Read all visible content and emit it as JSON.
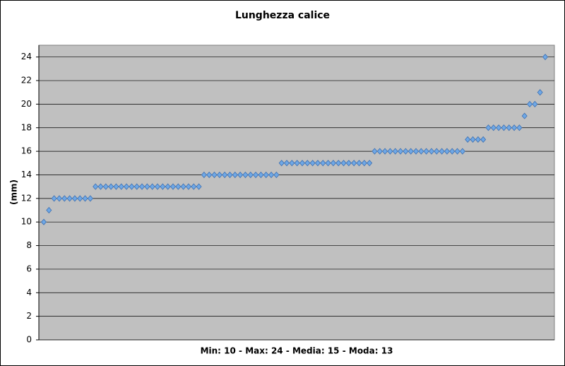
{
  "chart_data": {
    "type": "scatter",
    "title": "Lunghezza calice",
    "x_label": "Min: 10 - Max: 24 - Media: 15 - Moda: 13",
    "y_label": "(mm)",
    "color": "#6fa8e6",
    "values": [
      10,
      11,
      12,
      12,
      12,
      12,
      12,
      12,
      12,
      12,
      13,
      13,
      13,
      13,
      13,
      13,
      13,
      13,
      13,
      13,
      13,
      13,
      13,
      13,
      13,
      13,
      13,
      13,
      13,
      13,
      13,
      14,
      14,
      14,
      14,
      14,
      14,
      14,
      14,
      14,
      14,
      14,
      14,
      14,
      14,
      14,
      15,
      15,
      15,
      15,
      15,
      15,
      15,
      15,
      15,
      15,
      15,
      15,
      15,
      15,
      15,
      15,
      15,
      15,
      16,
      16,
      16,
      16,
      16,
      16,
      16,
      16,
      16,
      16,
      16,
      16,
      16,
      16,
      16,
      16,
      16,
      16,
      17,
      17,
      17,
      17,
      18,
      18,
      18,
      18,
      18,
      18,
      18,
      19,
      20,
      20,
      21,
      24
    ],
    "ylim": [
      0,
      25
    ],
    "yticks": [
      0,
      2,
      4,
      6,
      8,
      10,
      12,
      14,
      16,
      18,
      20,
      22,
      24
    ],
    "grid": true
  }
}
